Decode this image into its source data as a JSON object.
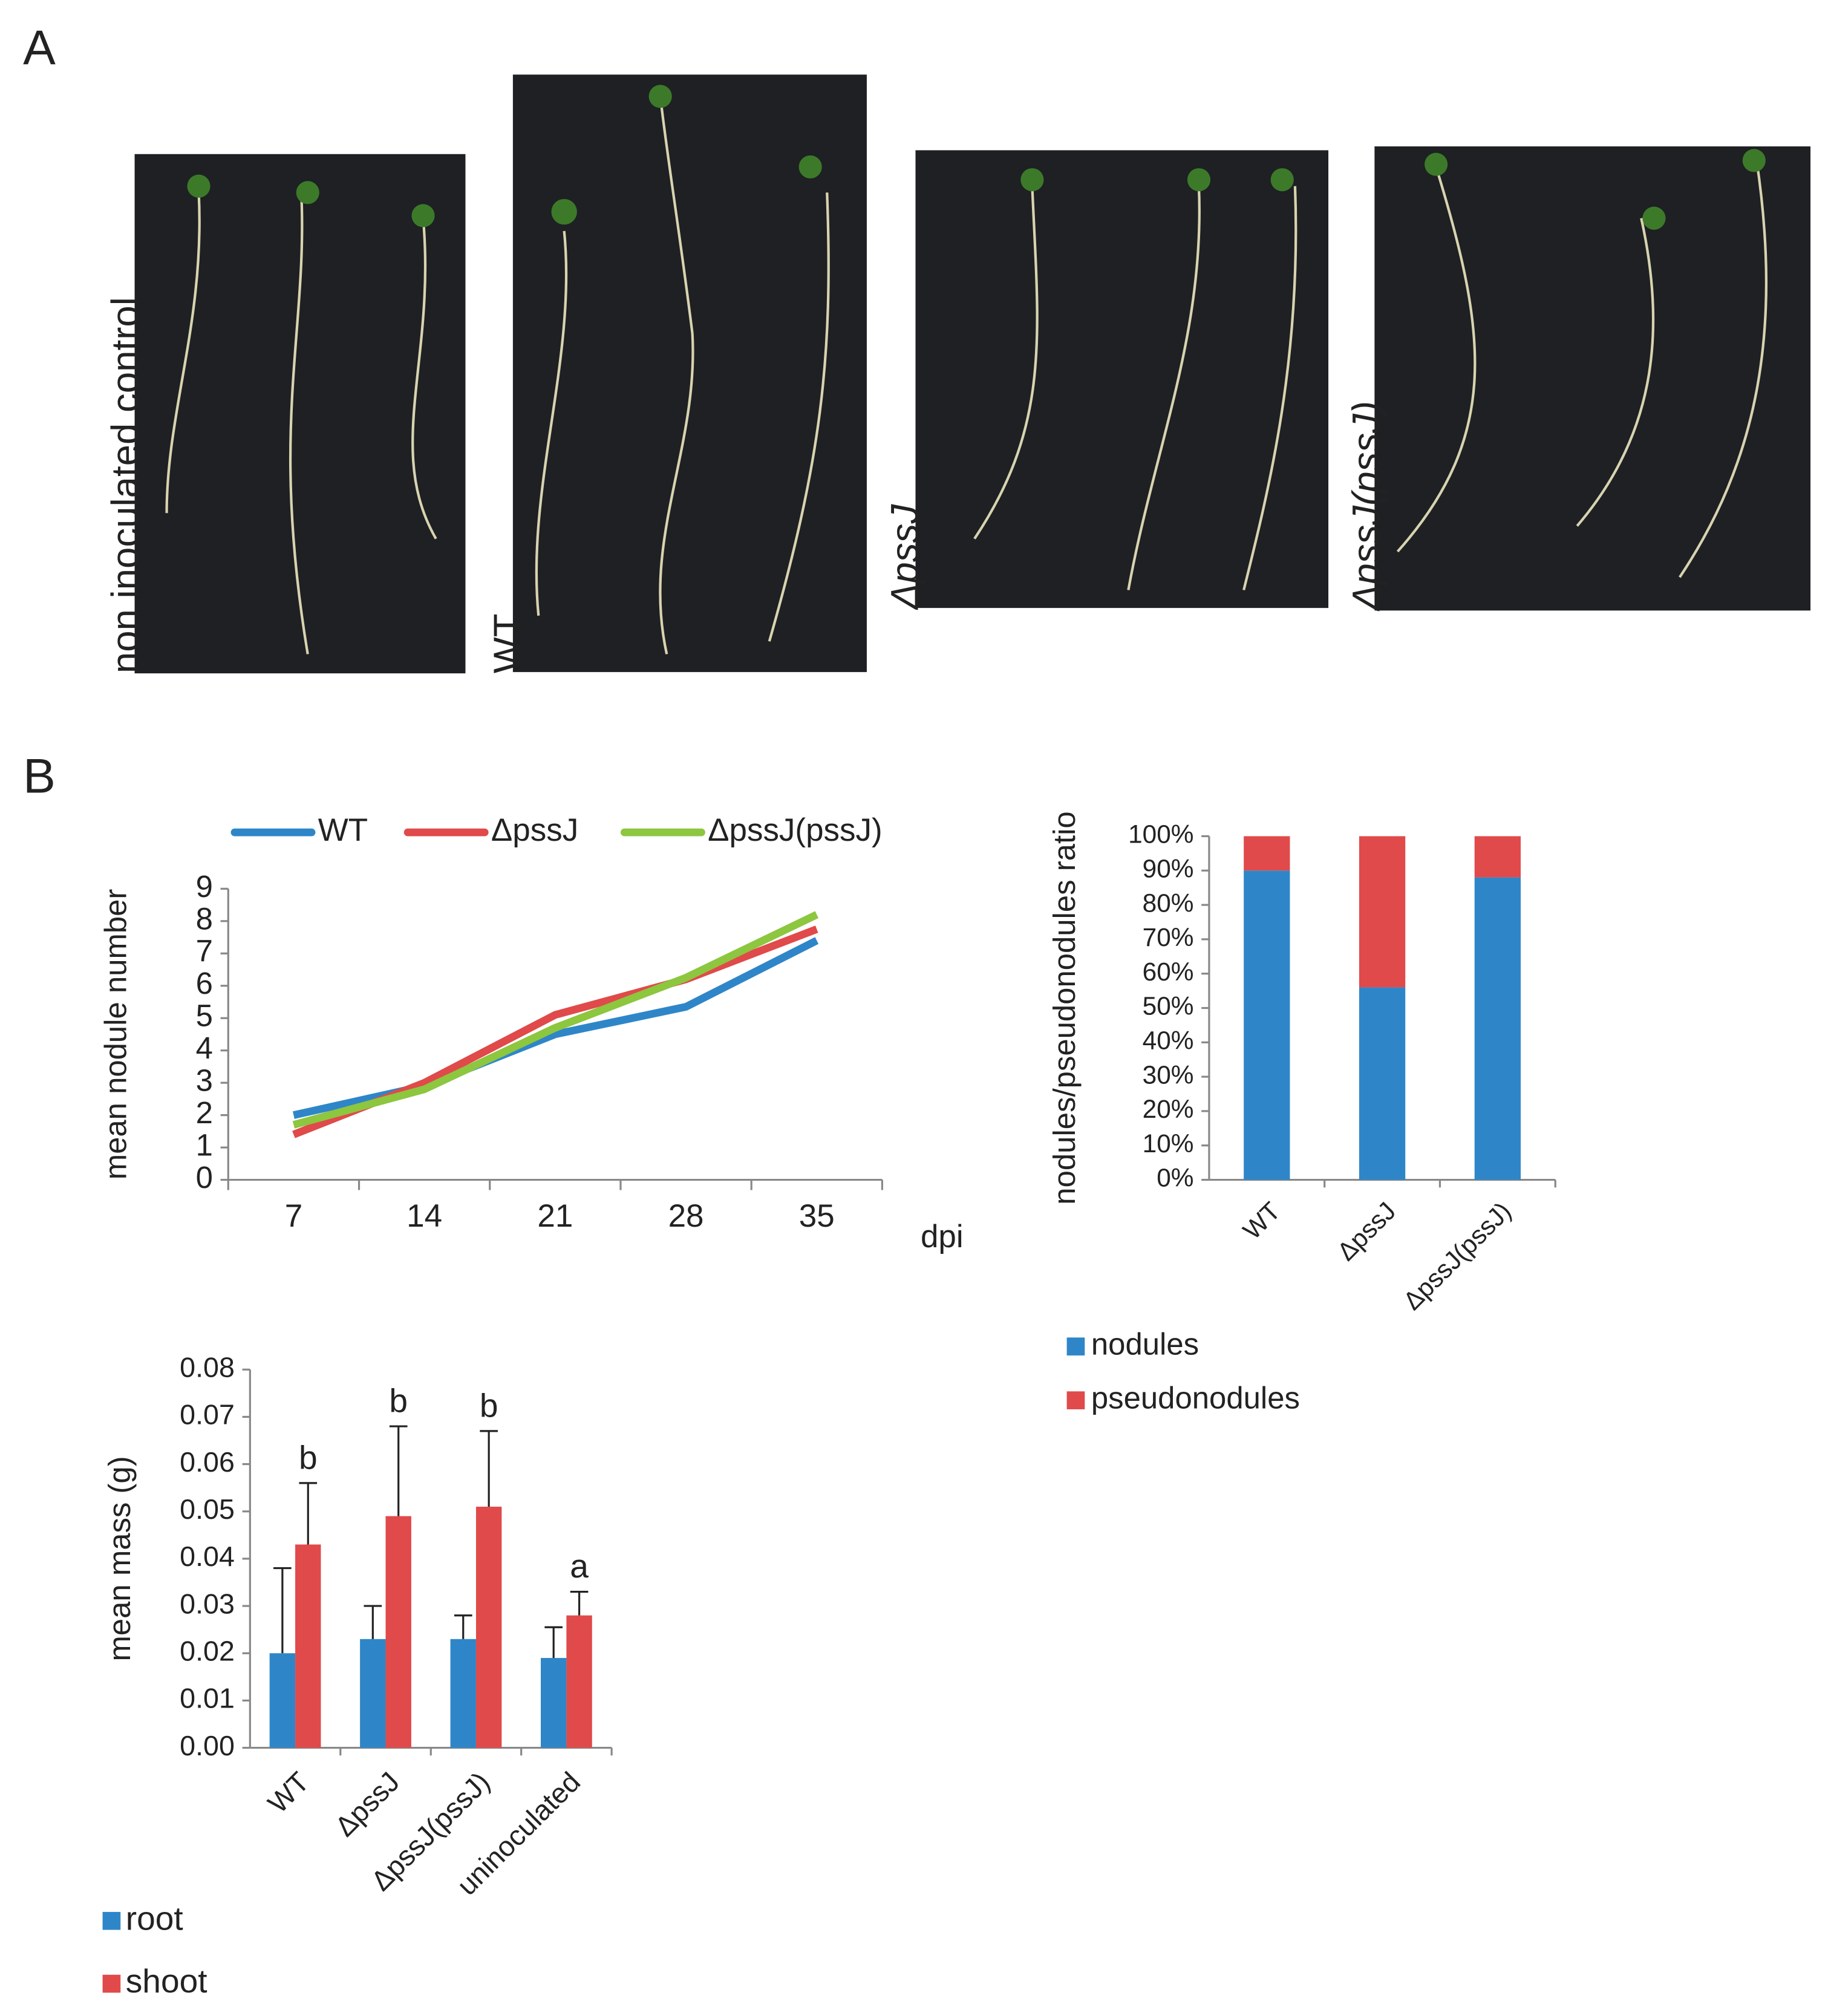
{
  "panels": {
    "a": "A",
    "b": "B"
  },
  "photos": [
    "non inoculated control",
    "WT",
    "ΔpssJ",
    "ΔpssJ(pssJ)"
  ],
  "chart_data": [
    {
      "type": "line",
      "ylabel": "mean nodule number",
      "xlabel": "dpi",
      "categories": [
        "7",
        "14",
        "21",
        "28",
        "35"
      ],
      "series": [
        {
          "name": "WT",
          "color": "#2e86c8",
          "values": [
            2.0,
            2.9,
            4.5,
            5.35,
            7.4
          ]
        },
        {
          "name": "ΔpssJ",
          "color": "#e04a4a",
          "values": [
            1.4,
            3.0,
            5.1,
            6.2,
            7.75
          ]
        },
        {
          "name": "ΔpssJ(pssJ)",
          "color": "#8dc63f",
          "values": [
            1.7,
            2.8,
            4.7,
            6.25,
            8.2
          ]
        }
      ],
      "ylim": [
        0,
        9
      ],
      "yticks": [
        0,
        1,
        2,
        3,
        4,
        5,
        6,
        7,
        8,
        9
      ],
      "legend": "top"
    },
    {
      "type": "stacked_bar",
      "ylabel": "nodules/pseudonodules ratio",
      "categories": [
        "WT",
        "ΔpssJ",
        "ΔpssJ(pssJ)"
      ],
      "series": [
        {
          "name": "nodules",
          "color": "#2e86c8",
          "values": [
            90,
            56,
            88
          ]
        },
        {
          "name": "pseudonodules",
          "color": "#e04a4a",
          "values": [
            10,
            44,
            12
          ]
        }
      ],
      "ylim": [
        0,
        100
      ],
      "yticks": [
        {
          "value": 0,
          "label": "0%"
        },
        {
          "value": 10,
          "label": "10%"
        },
        {
          "value": 20,
          "label": "20%"
        },
        {
          "value": 30,
          "label": "30%"
        },
        {
          "value": 40,
          "label": "40%"
        },
        {
          "value": 50,
          "label": "50%"
        },
        {
          "value": 60,
          "label": "60%"
        },
        {
          "value": 70,
          "label": "70%"
        },
        {
          "value": 80,
          "label": "80%"
        },
        {
          "value": 90,
          "label": "90%"
        },
        {
          "value": 100,
          "label": "100%"
        }
      ],
      "legend": "bottom"
    },
    {
      "type": "grouped_bar",
      "ylabel": "mean mass (g)",
      "categories": [
        "WT",
        "ΔpssJ",
        "ΔpssJ(pssJ)",
        "uninoculated"
      ],
      "series": [
        {
          "name": "root",
          "color": "#2e86c8",
          "values": [
            0.02,
            0.023,
            0.023,
            0.019
          ],
          "errors": [
            0.018,
            0.007,
            0.005,
            0.0065
          ]
        },
        {
          "name": "shoot",
          "color": "#e04a4a",
          "values": [
            0.043,
            0.049,
            0.051,
            0.028
          ],
          "errors": [
            0.013,
            0.019,
            0.016,
            0.005
          ]
        }
      ],
      "annotations": [
        "b",
        "b",
        "b",
        "a"
      ],
      "ylim": [
        0,
        0.08
      ],
      "yticks": [
        {
          "value": 0,
          "label": "0.00"
        },
        0.01,
        0.02,
        0.03,
        0.04,
        0.05,
        0.06,
        0.07,
        0.08
      ],
      "legend": "bottom"
    }
  ]
}
